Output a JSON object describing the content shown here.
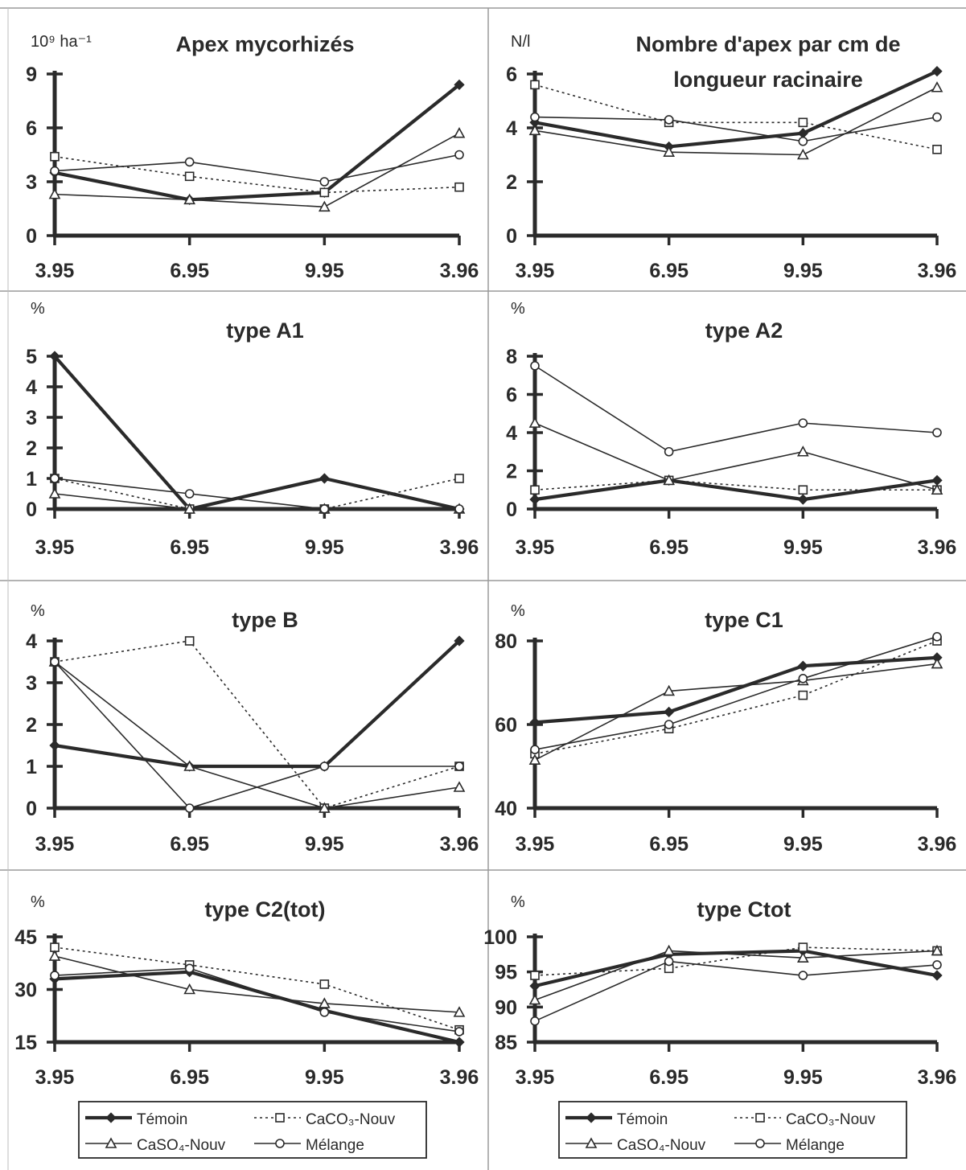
{
  "x_categories": [
    "3.95",
    "6.95",
    "9.95",
    "3.96"
  ],
  "legend": [
    {
      "name": "Témoin",
      "style": "thick",
      "marker": "diamond"
    },
    {
      "name": "CaCO₃-Nouv",
      "style": "dotted",
      "marker": "square"
    },
    {
      "name": "CaSO₄-Nouv",
      "style": "thin",
      "marker": "triangle"
    },
    {
      "name": "Mélange",
      "style": "thin",
      "marker": "circle"
    }
  ],
  "chart_data": [
    {
      "type": "line",
      "title": [
        "Apex mycorhizés"
      ],
      "ylabel": "10⁹ ha⁻¹",
      "ylim": [
        0,
        9
      ],
      "yticks": [
        0,
        3,
        6,
        9
      ],
      "categories": [
        "3.95",
        "6.95",
        "9.95",
        "3.96"
      ],
      "series": [
        {
          "name": "Témoin",
          "values": [
            3.5,
            2.0,
            2.4,
            8.4
          ]
        },
        {
          "name": "CaCO₃-Nouv",
          "values": [
            4.4,
            3.3,
            2.4,
            2.7
          ]
        },
        {
          "name": "CaSO₄-Nouv",
          "values": [
            2.3,
            2.0,
            1.6,
            5.7
          ]
        },
        {
          "name": "Mélange",
          "values": [
            3.6,
            4.1,
            3.0,
            4.5
          ]
        }
      ]
    },
    {
      "type": "line",
      "title": [
        "Nombre d'apex par cm de",
        "longueur racinaire"
      ],
      "ylabel": "N/l",
      "ylim": [
        0,
        6
      ],
      "yticks": [
        0,
        2,
        4,
        6
      ],
      "categories": [
        "3.95",
        "6.95",
        "9.95",
        "3.96"
      ],
      "series": [
        {
          "name": "Témoin",
          "values": [
            4.2,
            3.3,
            3.8,
            6.1
          ]
        },
        {
          "name": "CaCO₃-Nouv",
          "values": [
            5.6,
            4.2,
            4.2,
            3.2
          ]
        },
        {
          "name": "CaSO₄-Nouv",
          "values": [
            3.9,
            3.1,
            3.0,
            5.5
          ]
        },
        {
          "name": "Mélange",
          "values": [
            4.4,
            4.3,
            3.5,
            4.4
          ]
        }
      ]
    },
    {
      "type": "line",
      "title": [
        "type A1"
      ],
      "ylabel": "%",
      "ylim": [
        0,
        5
      ],
      "yticks": [
        0,
        1,
        2,
        3,
        4,
        5
      ],
      "categories": [
        "3.95",
        "6.95",
        "9.95",
        "3.96"
      ],
      "series": [
        {
          "name": "Témoin",
          "values": [
            5.0,
            0.0,
            1.0,
            0.0
          ]
        },
        {
          "name": "CaCO₃-Nouv",
          "values": [
            1.0,
            0.0,
            0.0,
            1.0
          ]
        },
        {
          "name": "CaSO₄-Nouv",
          "values": [
            0.5,
            0.0,
            0.0,
            0.0
          ]
        },
        {
          "name": "Mélange",
          "values": [
            1.0,
            0.5,
            0.0,
            0.0
          ]
        }
      ]
    },
    {
      "type": "line",
      "title": [
        "type A2"
      ],
      "ylabel": "%",
      "ylim": [
        0,
        8
      ],
      "yticks": [
        0,
        2,
        4,
        6,
        8
      ],
      "categories": [
        "3.95",
        "6.95",
        "9.95",
        "3.96"
      ],
      "series": [
        {
          "name": "Témoin",
          "values": [
            0.5,
            1.5,
            0.5,
            1.5
          ]
        },
        {
          "name": "CaCO₃-Nouv",
          "values": [
            1.0,
            1.5,
            1.0,
            1.0
          ]
        },
        {
          "name": "CaSO₄-Nouv",
          "values": [
            4.5,
            1.5,
            3.0,
            1.0
          ]
        },
        {
          "name": "Mélange",
          "values": [
            7.5,
            3.0,
            4.5,
            4.0
          ]
        }
      ]
    },
    {
      "type": "line",
      "title": [
        "type B"
      ],
      "ylabel": "%",
      "ylim": [
        0,
        4
      ],
      "yticks": [
        0,
        1,
        2,
        3,
        4
      ],
      "categories": [
        "3.95",
        "6.95",
        "9.95",
        "3.96"
      ],
      "series": [
        {
          "name": "Témoin",
          "values": [
            1.5,
            1.0,
            1.0,
            4.0
          ]
        },
        {
          "name": "CaCO₃-Nouv",
          "values": [
            3.5,
            4.0,
            0.0,
            1.0
          ]
        },
        {
          "name": "CaSO₄-Nouv",
          "values": [
            3.5,
            1.0,
            0.0,
            0.5
          ]
        },
        {
          "name": "Mélange",
          "values": [
            3.5,
            0.0,
            1.0,
            1.0
          ]
        }
      ]
    },
    {
      "type": "line",
      "title": [
        "type C1"
      ],
      "ylabel": "%",
      "ylim": [
        40,
        80
      ],
      "yticks": [
        40,
        60,
        80
      ],
      "categories": [
        "3.95",
        "6.95",
        "9.95",
        "3.96"
      ],
      "series": [
        {
          "name": "Témoin",
          "values": [
            60.5,
            63,
            74,
            76
          ]
        },
        {
          "name": "CaCO₃-Nouv",
          "values": [
            53,
            59,
            67,
            80
          ]
        },
        {
          "name": "CaSO₄-Nouv",
          "values": [
            51.5,
            68,
            70.5,
            74.5
          ]
        },
        {
          "name": "Mélange",
          "values": [
            54,
            60,
            71,
            81
          ]
        }
      ]
    },
    {
      "type": "line",
      "title": [
        "type C2(tot)"
      ],
      "ylabel": "%",
      "ylim": [
        15,
        45
      ],
      "yticks": [
        15,
        30,
        45
      ],
      "categories": [
        "3.95",
        "6.95",
        "9.95",
        "3.96"
      ],
      "series": [
        {
          "name": "Témoin",
          "values": [
            33,
            35,
            24,
            15
          ]
        },
        {
          "name": "CaCO₃-Nouv",
          "values": [
            42,
            37,
            31.5,
            18.5
          ]
        },
        {
          "name": "CaSO₄-Nouv",
          "values": [
            39.5,
            30,
            26,
            23.5
          ]
        },
        {
          "name": "Mélange",
          "values": [
            34,
            36,
            23.5,
            18
          ]
        }
      ]
    },
    {
      "type": "line",
      "title": [
        "type Ctot"
      ],
      "ylabel": "%",
      "ylim": [
        85,
        100
      ],
      "yticks": [
        85,
        90,
        95,
        100
      ],
      "categories": [
        "3.95",
        "6.95",
        "9.95",
        "3.96"
      ],
      "series": [
        {
          "name": "Témoin",
          "values": [
            93,
            97.5,
            98,
            94.5
          ]
        },
        {
          "name": "CaCO₃-Nouv",
          "values": [
            94.5,
            95.5,
            98.5,
            98
          ]
        },
        {
          "name": "CaSO₄-Nouv",
          "values": [
            91,
            98,
            97,
            98
          ]
        },
        {
          "name": "Mélange",
          "values": [
            88,
            96.5,
            94.5,
            96
          ]
        }
      ]
    }
  ]
}
